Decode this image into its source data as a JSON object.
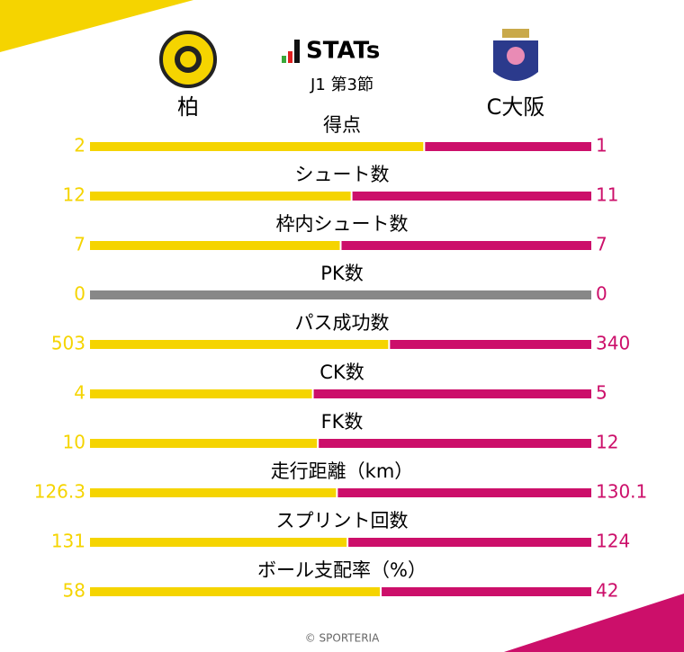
{
  "header": {
    "title": "STATs",
    "match": "J1 第3節",
    "home": "柏",
    "away": "C大阪"
  },
  "stats": [
    {
      "label": "得点",
      "home": 2,
      "away": 1
    },
    {
      "label": "シュート数",
      "home": 12,
      "away": 11
    },
    {
      "label": "枠内シュート数",
      "home": 7,
      "away": 7
    },
    {
      "label": "PK数",
      "home": 0,
      "away": 0
    },
    {
      "label": "パス成功数",
      "home": 503,
      "away": 340
    },
    {
      "label": "CK数",
      "home": 4,
      "away": 5
    },
    {
      "label": "FK数",
      "home": 10,
      "away": 12
    },
    {
      "label": "走行距離（km）",
      "home": 126.3,
      "away": 130.1
    },
    {
      "label": "スプリント回数",
      "home": 131,
      "away": 124
    },
    {
      "label": "ボール支配率（%）",
      "home": 58,
      "away": 42
    }
  ],
  "colors": {
    "home": "#f5d400",
    "away": "#cc0f6a",
    "empty": "#888888"
  },
  "credit": "© SPORTERIA"
}
